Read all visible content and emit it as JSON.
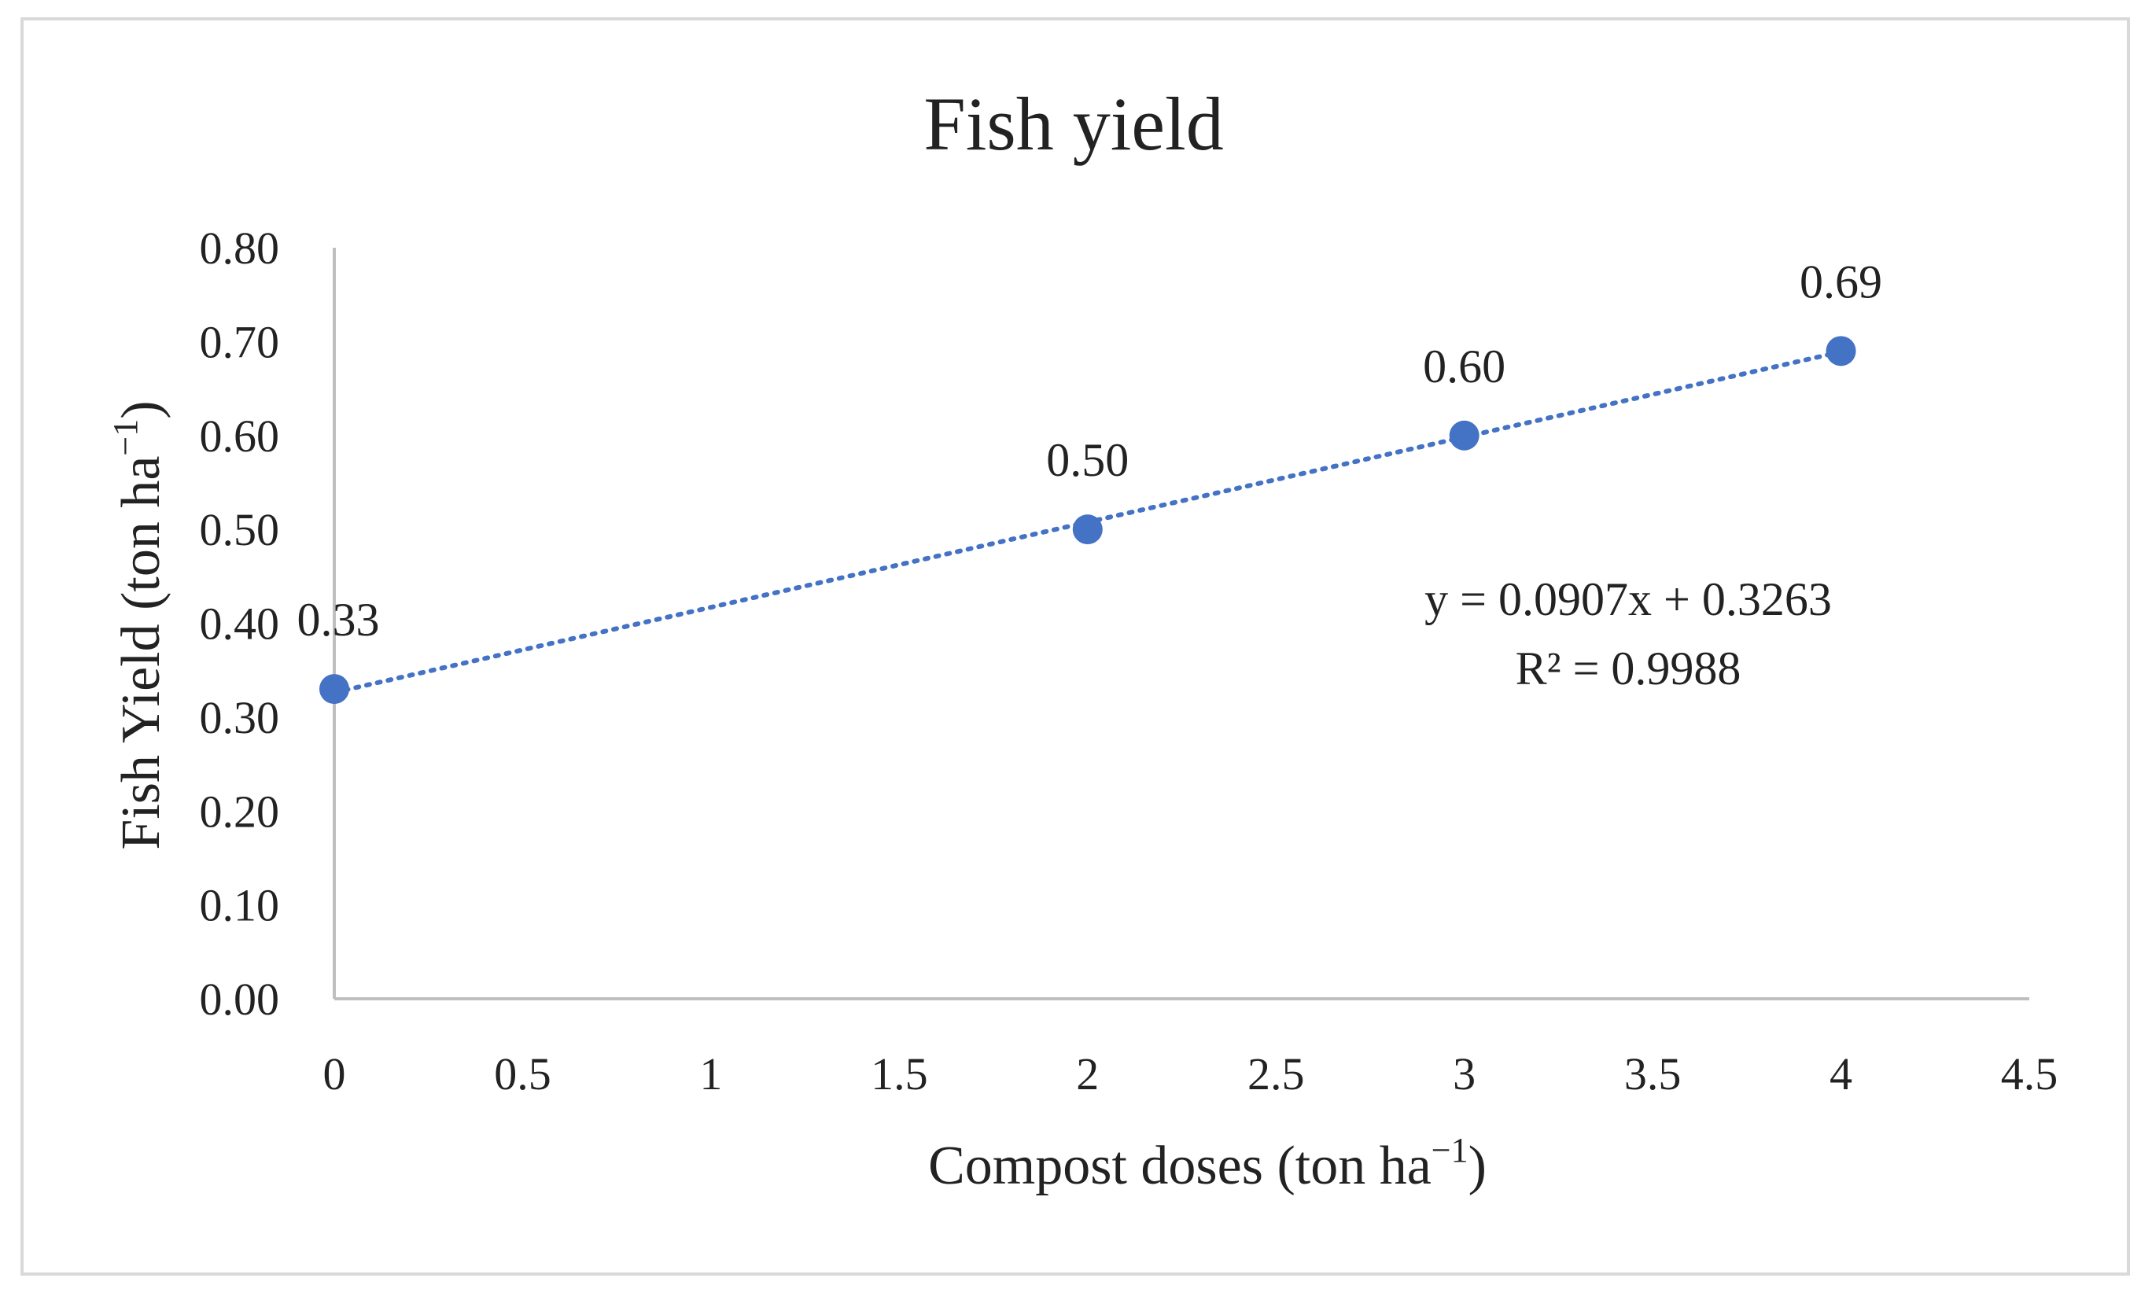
{
  "chart_data": {
    "type": "scatter",
    "title": "Fish yield",
    "xlabel": "Compost doses (ton ha",
    "xlabel_sup": "−1",
    "xlabel_close": ")",
    "ylabel": "Fish Yield (ton ha",
    "ylabel_sup": "−1",
    "ylabel_close": ")",
    "xlim": [
      0,
      4.5
    ],
    "ylim": [
      0,
      0.8
    ],
    "x_ticks": [
      "0",
      "0.5",
      "1",
      "1.5",
      "2",
      "2.5",
      "3",
      "3.5",
      "4",
      "4.5"
    ],
    "y_ticks": [
      "0.00",
      "0.10",
      "0.20",
      "0.30",
      "0.40",
      "0.50",
      "0.60",
      "0.70",
      "0.80"
    ],
    "x_tick_values": [
      0,
      0.5,
      1,
      1.5,
      2,
      2.5,
      3,
      3.5,
      4,
      4.5
    ],
    "y_tick_values": [
      0,
      0.1,
      0.2,
      0.3,
      0.4,
      0.5,
      0.6,
      0.7,
      0.8
    ],
    "series": [
      {
        "name": "Fish yield",
        "x": [
          0,
          2,
          3,
          4
        ],
        "y": [
          0.33,
          0.5,
          0.6,
          0.69
        ],
        "labels": [
          "0.33",
          "0.50",
          "0.60",
          "0.69"
        ],
        "color": "#4472C4"
      }
    ],
    "trendline": {
      "type": "linear",
      "slope": 0.0907,
      "intercept": 0.3263,
      "style": "dotted",
      "color": "#4472C4",
      "equation": "y = 0.0907x + 0.3263",
      "r_squared": "R² = 0.9988"
    },
    "grid": false,
    "legend": "none"
  }
}
